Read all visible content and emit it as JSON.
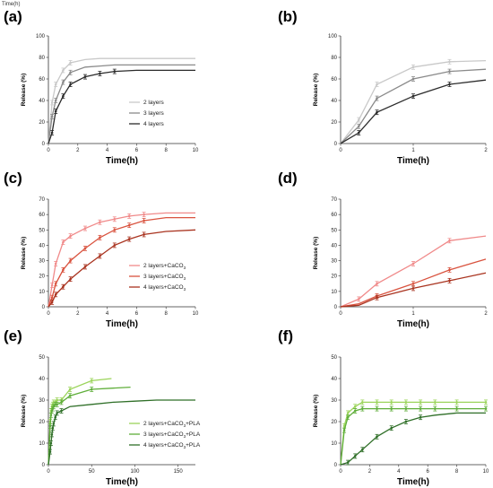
{
  "header_text": "Time(h)",
  "chart_data": [
    {
      "panel": "(a)",
      "type": "line",
      "xlabel": "Time(h)",
      "ylabel": "Release (%)",
      "xlim": [
        0,
        10
      ],
      "ylim": [
        0,
        100
      ],
      "xticks": [
        "0",
        "2",
        "4",
        "6",
        "8",
        "10"
      ],
      "yticks": [
        "0",
        "20",
        "40",
        "60",
        "80",
        "100"
      ],
      "legend": "bottom-right",
      "series": [
        {
          "name": "2 layers",
          "color": "#c9c9c9",
          "x": [
            0,
            0.25,
            0.5,
            1,
            1.5,
            2.5,
            3.5,
            4.5,
            6,
            8,
            10
          ],
          "y": [
            0,
            38,
            55,
            68,
            75,
            78,
            79,
            79,
            79,
            79,
            79
          ],
          "markers": [
            0.25,
            0.5,
            1,
            1.5
          ]
        },
        {
          "name": "3 layers",
          "color": "#8a8a8a",
          "x": [
            0,
            0.25,
            0.5,
            1,
            1.5,
            2.5,
            3.5,
            4.5,
            6,
            8,
            10
          ],
          "y": [
            0,
            25,
            40,
            57,
            66,
            71,
            72,
            73,
            73,
            73,
            73
          ],
          "markers": [
            0.25,
            0.5,
            1,
            1.5
          ]
        },
        {
          "name": "4 layers",
          "color": "#2b2b2b",
          "x": [
            0,
            0.25,
            0.5,
            1,
            1.5,
            2.5,
            3.5,
            4.5,
            6,
            8,
            10
          ],
          "y": [
            0,
            10,
            30,
            44,
            55,
            62,
            65,
            67,
            68,
            68,
            68
          ],
          "markers": [
            0.25,
            0.5,
            1,
            1.5,
            2.5,
            3.5,
            4.5
          ]
        }
      ]
    },
    {
      "panel": "(b)",
      "type": "line",
      "xlabel": "Time(h)",
      "ylabel": "Release (%)",
      "xlim": [
        0,
        2
      ],
      "ylim": [
        0,
        100
      ],
      "xticks": [
        "0",
        "1",
        "2"
      ],
      "yticks": [
        "0",
        "20",
        "40",
        "60",
        "80",
        "100"
      ],
      "series": [
        {
          "name": "2 layers",
          "color": "#c9c9c9",
          "x": [
            0,
            0.25,
            0.5,
            1,
            1.5,
            2
          ],
          "y": [
            0,
            22,
            55,
            71,
            76,
            77
          ],
          "markers": [
            0.25,
            0.5,
            1,
            1.5
          ]
        },
        {
          "name": "3 layers",
          "color": "#8a8a8a",
          "x": [
            0,
            0.25,
            0.5,
            1,
            1.5,
            2
          ],
          "y": [
            0,
            16,
            42,
            60,
            67,
            69
          ],
          "markers": [
            0.25,
            0.5,
            1,
            1.5
          ]
        },
        {
          "name": "4 layers",
          "color": "#2b2b2b",
          "x": [
            0,
            0.25,
            0.5,
            1,
            1.5,
            2
          ],
          "y": [
            0,
            10,
            29,
            44,
            55,
            59
          ],
          "markers": [
            0.25,
            0.5,
            1,
            1.5
          ]
        }
      ]
    },
    {
      "panel": "(c)",
      "type": "line",
      "xlabel": "Time(h)",
      "ylabel": "Release (%)",
      "xlim": [
        0,
        10
      ],
      "ylim": [
        0,
        70
      ],
      "xticks": [
        "0",
        "2",
        "4",
        "6",
        "8",
        "10"
      ],
      "yticks": [
        "0",
        "10",
        "20",
        "30",
        "40",
        "50",
        "60",
        "70"
      ],
      "legend": "bottom-right",
      "series": [
        {
          "name": "2 layers+CaCO",
          "sub": "3",
          "color": "#f08a8a",
          "x": [
            0,
            0.25,
            0.5,
            1,
            1.5,
            2.5,
            3.5,
            4.5,
            5.5,
            6.5,
            8,
            10
          ],
          "y": [
            0,
            14,
            28,
            42,
            46,
            51,
            55,
            57,
            59,
            60,
            61,
            61
          ],
          "markers": [
            0.25,
            0.5,
            1,
            1.5,
            2.5,
            3.5,
            4.5,
            5.5,
            6.5
          ]
        },
        {
          "name": "3 layers+CaCO",
          "sub": "3",
          "color": "#d9533f",
          "x": [
            0,
            0.25,
            0.5,
            1,
            1.5,
            2.5,
            3.5,
            4.5,
            5.5,
            6.5,
            8,
            10
          ],
          "y": [
            0,
            6,
            15,
            24,
            30,
            38,
            45,
            50,
            53,
            56,
            58,
            58
          ],
          "markers": [
            0.25,
            0.5,
            1,
            1.5,
            2.5,
            3.5,
            4.5,
            5.5,
            6.5
          ]
        },
        {
          "name": "4 layers+CaCO",
          "sub": "3",
          "color": "#a9331f",
          "x": [
            0,
            0.25,
            0.5,
            1,
            1.5,
            2.5,
            3.5,
            4.5,
            5.5,
            6.5,
            8,
            10
          ],
          "y": [
            0,
            3,
            8,
            13,
            18,
            26,
            33,
            40,
            44,
            47,
            49,
            50
          ],
          "markers": [
            0.25,
            0.5,
            1,
            1.5,
            2.5,
            3.5,
            4.5,
            5.5,
            6.5
          ]
        }
      ]
    },
    {
      "panel": "(d)",
      "type": "line",
      "xlabel": "Time(h)",
      "ylabel": "Release (%)",
      "xlim": [
        0,
        2
      ],
      "ylim": [
        0,
        70
      ],
      "xticks": [
        "0",
        "1",
        "2"
      ],
      "yticks": [
        "0",
        "10",
        "20",
        "30",
        "40",
        "50",
        "60",
        "70"
      ],
      "series": [
        {
          "name": "2 layers+CaCO3",
          "color": "#f08a8a",
          "x": [
            0,
            0.25,
            0.5,
            1,
            1.5,
            2
          ],
          "y": [
            0,
            5,
            15,
            28,
            43,
            46
          ],
          "markers": [
            0.25,
            0.5,
            1,
            1.5
          ]
        },
        {
          "name": "3 layers+CaCO3",
          "color": "#d9533f",
          "x": [
            0,
            0.25,
            0.5,
            1,
            1.5,
            2
          ],
          "y": [
            0,
            2,
            7,
            15,
            24,
            31
          ],
          "markers": [
            0.5,
            1,
            1.5
          ]
        },
        {
          "name": "4 layers+CaCO3",
          "color": "#a9331f",
          "x": [
            0,
            0.25,
            0.5,
            1,
            1.5,
            2
          ],
          "y": [
            0,
            1,
            6,
            12,
            17,
            22
          ],
          "markers": [
            0.5,
            1,
            1.5
          ]
        }
      ]
    },
    {
      "panel": "(e)",
      "type": "line",
      "xlabel": "Time(h)",
      "ylabel": "Release (%)",
      "xlim": [
        0,
        170
      ],
      "ylim": [
        0,
        50
      ],
      "xticks": [
        "0",
        "50",
        "100",
        "150"
      ],
      "yticks": [
        "0",
        "10",
        "20",
        "30",
        "40",
        "50"
      ],
      "legend": "bottom-right",
      "series": [
        {
          "name": "2 layers+CaCO",
          "sub": "3",
          "tail": "+PLA",
          "color": "#9bd45a",
          "x": [
            0,
            1,
            2,
            3,
            4,
            5,
            6,
            8,
            10,
            15,
            25,
            50,
            73
          ],
          "y": [
            0,
            10,
            20,
            25,
            27,
            28,
            29,
            29,
            30,
            30,
            35,
            39,
            40
          ],
          "markers": [
            2,
            3,
            4,
            5,
            6,
            8,
            10,
            15,
            25,
            50
          ]
        },
        {
          "name": "3 layers+CaCO",
          "sub": "3",
          "tail": "+PLA",
          "color": "#5fae3a",
          "x": [
            0,
            1,
            2,
            3,
            4,
            5,
            6,
            8,
            10,
            15,
            25,
            50,
            95
          ],
          "y": [
            0,
            8,
            18,
            23,
            25,
            26,
            27,
            28,
            28,
            29,
            32,
            35,
            36
          ],
          "markers": [
            2,
            3,
            4,
            5,
            6,
            8,
            10,
            15,
            25,
            50
          ]
        },
        {
          "name": "4 layers+CaCO",
          "sub": "3",
          "tail": "+PLA",
          "color": "#2f6f28",
          "x": [
            0,
            1,
            2,
            3,
            4,
            5,
            6,
            8,
            10,
            15,
            25,
            50,
            75,
            100,
            125,
            150,
            170
          ],
          "y": [
            0,
            3,
            6,
            10,
            14,
            17,
            19,
            22,
            24,
            25,
            27,
            28,
            29,
            29.5,
            30,
            30,
            30
          ],
          "markers": [
            2,
            3,
            4,
            5,
            6,
            8,
            10,
            15
          ]
        }
      ]
    },
    {
      "panel": "(f)",
      "type": "line",
      "xlabel": "Time(h)",
      "ylabel": "Release (%)",
      "xlim": [
        0,
        10
      ],
      "ylim": [
        0,
        50
      ],
      "xticks": [
        "0",
        "2",
        "4",
        "6",
        "8",
        "10"
      ],
      "yticks": [
        "0",
        "10",
        "20",
        "30",
        "40",
        "50"
      ],
      "series": [
        {
          "name": "2 layers+CaCO3+PLA",
          "color": "#9bd45a",
          "x": [
            0,
            0.25,
            0.5,
            1,
            1.5,
            2.5,
            3.5,
            4.5,
            5.5,
            6.5,
            8,
            10
          ],
          "y": [
            0,
            18,
            24,
            27,
            29,
            29,
            29,
            29,
            29,
            29,
            29,
            29
          ],
          "markers": [
            0.25,
            0.5,
            1,
            1.5,
            2.5,
            3.5,
            4.5,
            5.5,
            6.5,
            8,
            10
          ]
        },
        {
          "name": "3 layers+CaCO3+PLA",
          "color": "#5fae3a",
          "x": [
            0,
            0.25,
            0.5,
            1,
            1.5,
            2.5,
            3.5,
            4.5,
            5.5,
            6.5,
            8,
            10
          ],
          "y": [
            0,
            16,
            22,
            25,
            26,
            26,
            26,
            26,
            26,
            26,
            26,
            26
          ],
          "markers": [
            0.25,
            0.5,
            1,
            1.5,
            2.5,
            3.5,
            4.5,
            5.5,
            6.5,
            8,
            10
          ]
        },
        {
          "name": "4 layers+CaCO3+PLA",
          "color": "#2f6f28",
          "x": [
            0,
            0.5,
            1,
            1.5,
            2.5,
            3.5,
            4.5,
            5.5,
            6.5,
            8,
            10
          ],
          "y": [
            0,
            1,
            4,
            7,
            13,
            17,
            20,
            22,
            23,
            24,
            24
          ],
          "markers": [
            0.5,
            1,
            1.5,
            2.5,
            3.5,
            4.5,
            5.5
          ]
        }
      ]
    }
  ]
}
